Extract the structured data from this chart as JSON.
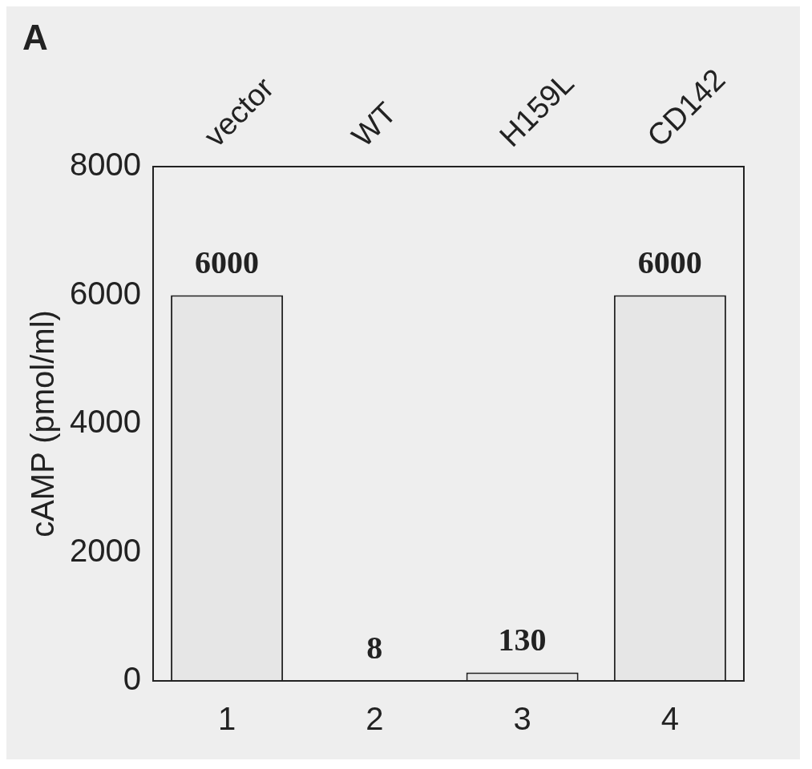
{
  "chart_data": {
    "type": "bar",
    "title": "A",
    "ylabel": "cAMP (pmol/ml)",
    "categories": [
      "1",
      "2",
      "3",
      "4"
    ],
    "values": [
      6000,
      8,
      130,
      6000
    ],
    "color": "#e6e6e6",
    "ylim": [
      0,
      8000
    ],
    "yticks": [
      0,
      2000,
      4000,
      6000,
      8000
    ],
    "data_labels": true,
    "annotations": [
      "vector",
      "WT",
      "H159L",
      "CD142"
    ]
  }
}
